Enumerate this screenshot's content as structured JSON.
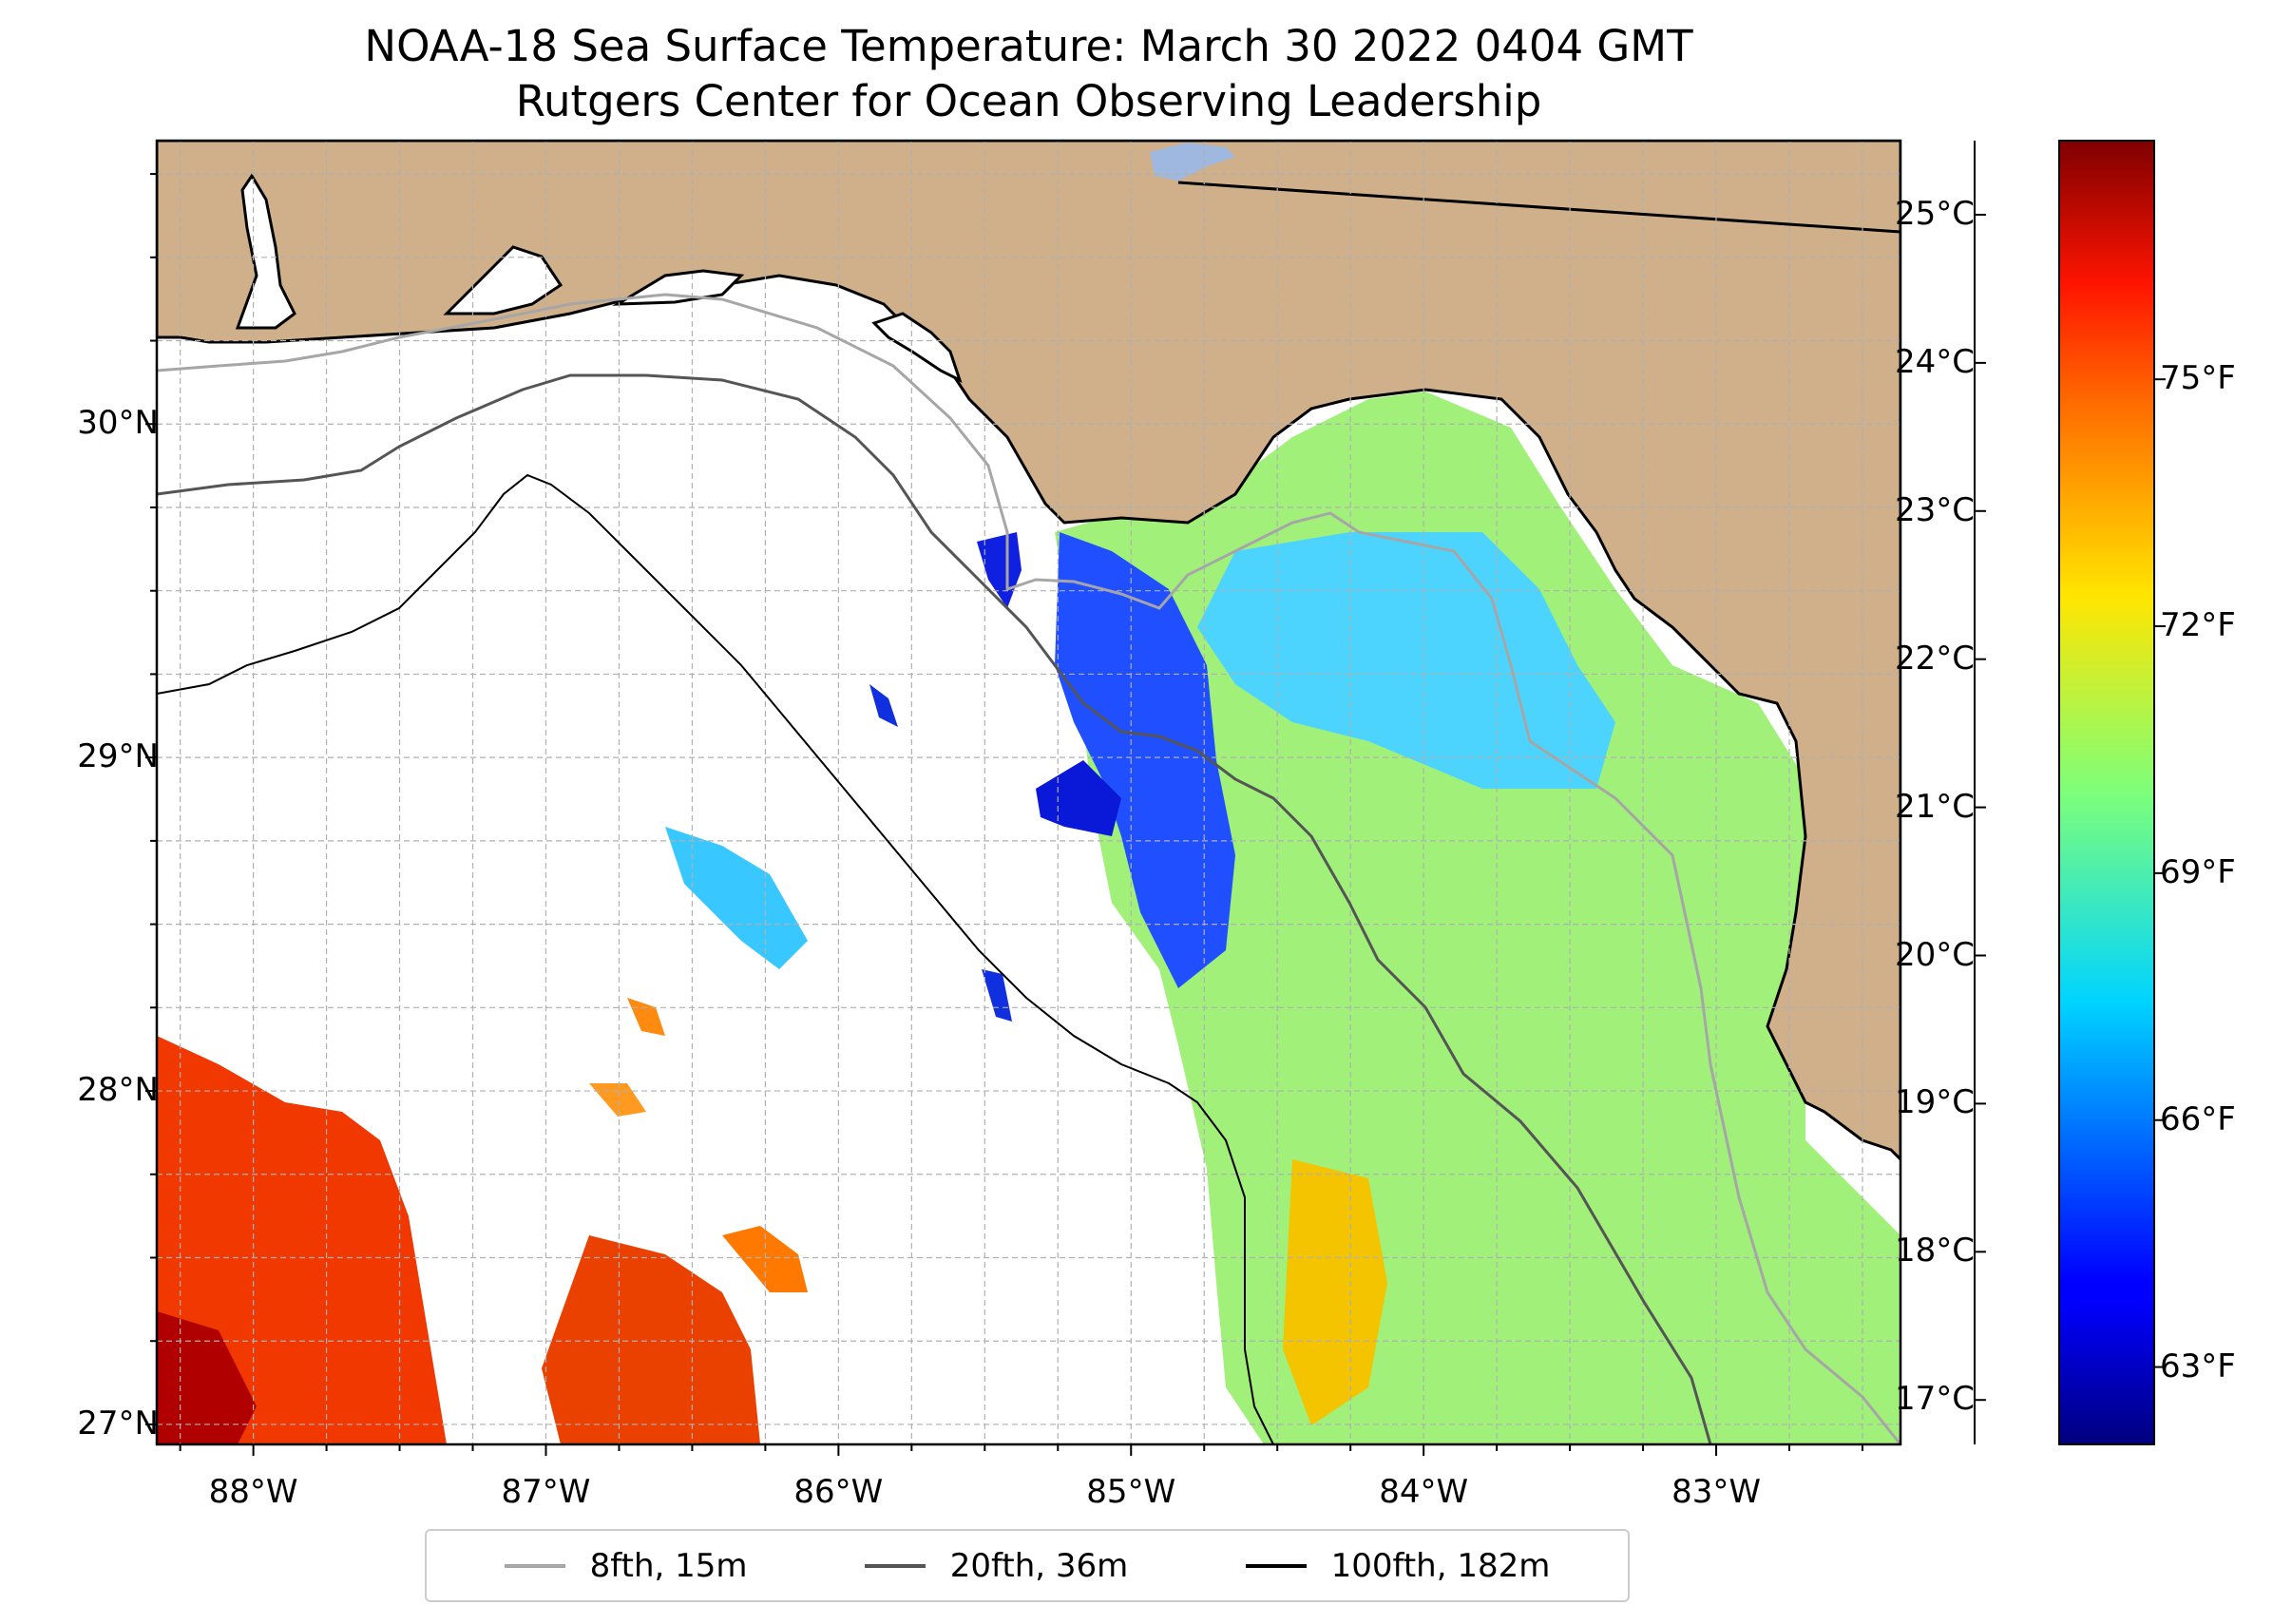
{
  "title": {
    "line1": "NOAA-18 Sea Surface Temperature: March 30 2022 0404 GMT",
    "line2": "Rutgers Center for Ocean Observing Leadership"
  },
  "map": {
    "lat_range": [
      26.94,
      30.85
    ],
    "lon_range": [
      -88.33,
      -82.37
    ],
    "lat_ticks": [
      {
        "value": 30,
        "label": "30°N"
      },
      {
        "value": 29,
        "label": "29°N"
      },
      {
        "value": 28,
        "label": "28°N"
      },
      {
        "value": 27,
        "label": "27°N"
      }
    ],
    "lon_ticks": [
      {
        "value": -88,
        "label": "88°W"
      },
      {
        "value": -87,
        "label": "87°W"
      },
      {
        "value": -86,
        "label": "86°W"
      },
      {
        "value": -85,
        "label": "85°W"
      },
      {
        "value": -84,
        "label": "84°W"
      },
      {
        "value": -83,
        "label": "83°W"
      }
    ],
    "colors": {
      "land": "#d0b08a",
      "water_nodata": "#ffffff",
      "coastline": "#000000",
      "gridline": "#b0b0b0",
      "lake": "#9fb8e0"
    }
  },
  "colorbar": {
    "celsius_range": [
      16.7,
      25.5
    ],
    "celsius_ticks": [
      {
        "value": 25,
        "label": "25°C"
      },
      {
        "value": 24,
        "label": "24°C"
      },
      {
        "value": 23,
        "label": "23°C"
      },
      {
        "value": 22,
        "label": "22°C"
      },
      {
        "value": 21,
        "label": "21°C"
      },
      {
        "value": 20,
        "label": "20°C"
      },
      {
        "value": 19,
        "label": "19°C"
      },
      {
        "value": 18,
        "label": "18°C"
      },
      {
        "value": 17,
        "label": "17°C"
      }
    ],
    "fahrenheit_ticks": [
      {
        "value": 75,
        "label": "75°F"
      },
      {
        "value": 72,
        "label": "72°F"
      },
      {
        "value": 69,
        "label": "69°F"
      },
      {
        "value": 66,
        "label": "66°F"
      },
      {
        "value": 63,
        "label": "63°F"
      }
    ],
    "colormap": "jet"
  },
  "legend": {
    "items": [
      {
        "label": "8fth, 15m",
        "color": "#a6a6a6"
      },
      {
        "label": "20fth, 36m",
        "color": "#555555"
      },
      {
        "label": "100fth, 182m",
        "color": "#000000"
      }
    ]
  }
}
